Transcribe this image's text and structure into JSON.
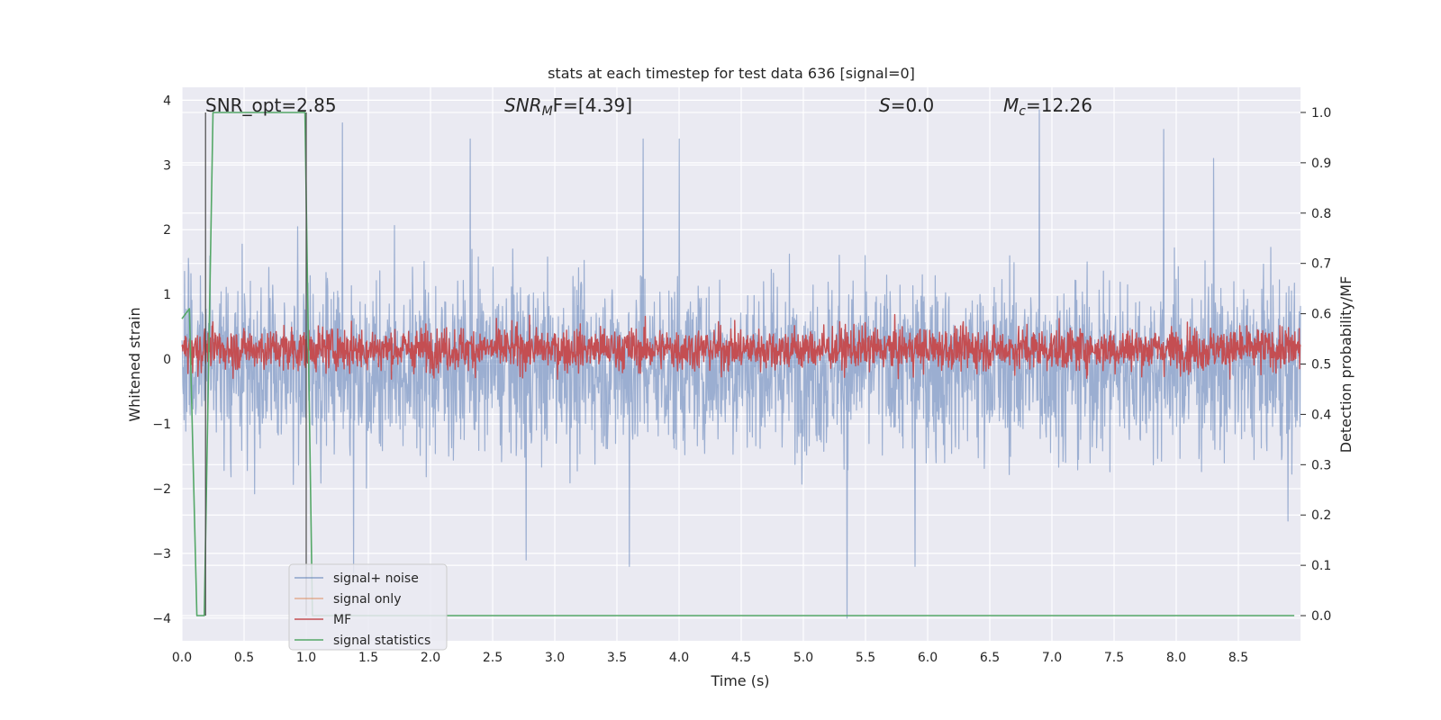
{
  "chart_data": {
    "type": "line",
    "title": "stats at each timestep for test data 636 [signal=0]",
    "xlabel": "Time (s)",
    "ylabel": "Whitened strain",
    "y2label": "Detection probability/MF",
    "xlim": [
      0.0,
      9.0
    ],
    "ylim": [
      -4.35,
      4.2
    ],
    "y2lim": [
      -0.05,
      1.05
    ],
    "x_ticks": [
      "0.0",
      "0.5",
      "1.0",
      "1.5",
      "2.0",
      "2.5",
      "3.0",
      "3.5",
      "4.0",
      "4.5",
      "5.0",
      "5.5",
      "6.0",
      "6.5",
      "7.0",
      "7.5",
      "8.0",
      "8.5"
    ],
    "y_ticks": [
      "4",
      "3",
      "2",
      "1",
      "0",
      "−1",
      "−2",
      "−3",
      "−4"
    ],
    "y2_ticks": [
      "1.0",
      "0.9",
      "0.8",
      "0.7",
      "0.6",
      "0.5",
      "0.4",
      "0.3",
      "0.2",
      "0.1",
      "0.0"
    ],
    "grid": true,
    "legend_position": "lower-left",
    "annotations": {
      "snr_opt": "SNR_opt=2.85",
      "snr_mf_base": "SNR",
      "snr_mf_sub": "M",
      "snr_mf_rest": "F=[4.39]",
      "s_var": "S",
      "s_rest": "=0.0",
      "mc_var": "M",
      "mc_sub": "c",
      "mc_rest": "=12.26"
    },
    "vertical_markers": [
      0.19,
      1.0
    ],
    "series": [
      {
        "name": "signal+ noise",
        "color": "#4c72b0",
        "axis": "left",
        "style": "noise",
        "envelope_upper_typical": 1.5,
        "envelope_lower_typical": -1.7,
        "spikes": [
          [
            1.0,
            1.6
          ],
          [
            1.29,
            3.65
          ],
          [
            1.38,
            -3.3
          ],
          [
            2.32,
            3.4
          ],
          [
            2.77,
            -3.1
          ],
          [
            3.6,
            -3.2
          ],
          [
            3.71,
            3.4
          ],
          [
            4.0,
            3.4
          ],
          [
            5.35,
            -4.0
          ],
          [
            5.9,
            -3.2
          ],
          [
            6.9,
            3.85
          ],
          [
            7.9,
            3.55
          ],
          [
            8.3,
            3.1
          ],
          [
            8.9,
            -2.5
          ]
        ]
      },
      {
        "name": "signal only",
        "color": "#dd8452",
        "axis": "left",
        "style": "flat",
        "value": 0.0
      },
      {
        "name": "MF",
        "color": "#c44e52",
        "axis": "right",
        "style": "noise",
        "center": 0.53,
        "amplitude": 0.05,
        "max": 0.64
      },
      {
        "name": "signal statistics",
        "color": "#55a868",
        "axis": "right",
        "style": "polyline",
        "x": [
          0.0,
          0.06,
          0.12,
          0.18,
          0.25,
          0.5,
          0.75,
          0.99,
          1.05,
          1.1,
          1.3,
          2.0,
          3.0,
          4.0,
          5.0,
          6.0,
          7.0,
          8.0,
          8.95
        ],
        "y": [
          0.59,
          0.61,
          0.0,
          0.0,
          1.0,
          1.0,
          1.0,
          1.0,
          0.0,
          0.0,
          0.0,
          0.0,
          0.0,
          0.0,
          0.0,
          0.0,
          0.0,
          0.0,
          0.0
        ]
      }
    ]
  }
}
